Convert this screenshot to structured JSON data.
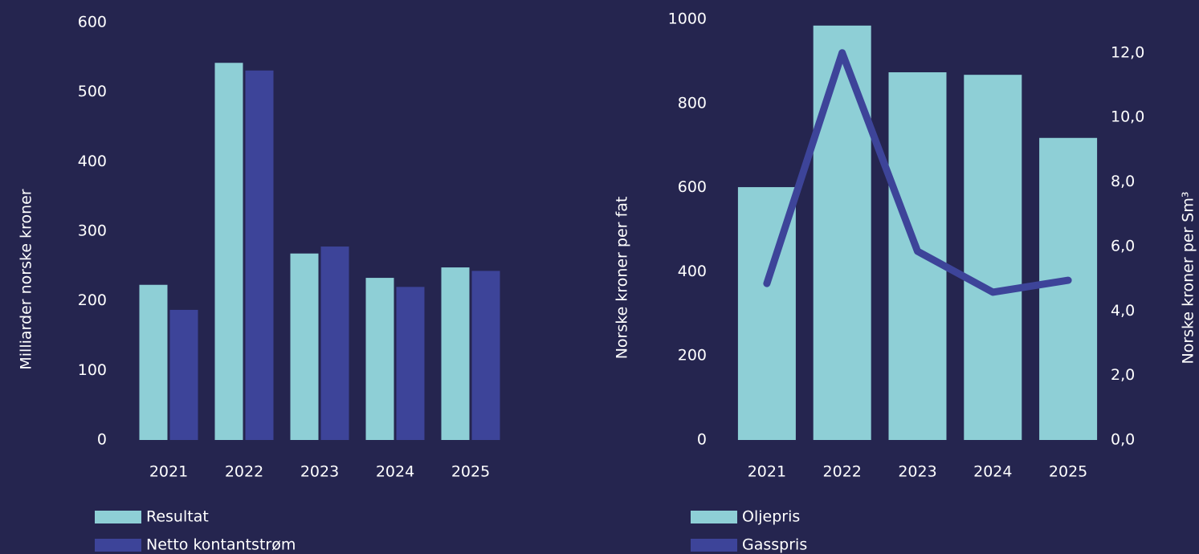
{
  "chart_data": [
    {
      "type": "bar",
      "ylabel": "Milliarder norske kroner",
      "categories": [
        "2021",
        "2022",
        "2023",
        "2024",
        "2025"
      ],
      "series": [
        {
          "name": "Resultat",
          "color": "#8ecfd6",
          "values": [
            223,
            542,
            268,
            233,
            248
          ]
        },
        {
          "name": "Netto kontantstrøm",
          "color": "#3d4499",
          "values": [
            187,
            531,
            278,
            220,
            243
          ]
        }
      ],
      "ylim": [
        0,
        600
      ],
      "yticks": [
        0,
        100,
        200,
        300,
        400,
        500,
        600
      ],
      "grid": false,
      "legend": "bottom-left"
    },
    {
      "type": "combo",
      "ylabel": "Norske kroner per fat",
      "y2label": "Norske kroner per Sm³",
      "categories": [
        "2021",
        "2022",
        "2023",
        "2024",
        "2025"
      ],
      "series": [
        {
          "name": "Oljepris",
          "type": "bar",
          "color": "#8ecfd6",
          "values": [
            601,
            985,
            874,
            868,
            718
          ]
        },
        {
          "name": "Gasspris",
          "type": "line",
          "axis": "y2",
          "color": "#3d4499",
          "values": [
            4.85,
            12.0,
            5.85,
            4.58,
            4.95
          ]
        }
      ],
      "ylim": [
        0,
        1000
      ],
      "yticks": [
        0,
        200,
        400,
        600,
        800,
        1000
      ],
      "y2lim": [
        0,
        13.04
      ],
      "y2ticks": [
        {
          "value": 0,
          "label": "0,0"
        },
        {
          "value": 2,
          "label": "2,0"
        },
        {
          "value": 4,
          "label": "4,0"
        },
        {
          "value": 6,
          "label": "6,0"
        },
        {
          "value": 8,
          "label": "8,0"
        },
        {
          "value": 10,
          "label": "10,0"
        },
        {
          "value": 12,
          "label": "12,0"
        }
      ],
      "grid": false,
      "legend": "bottom-left"
    }
  ]
}
